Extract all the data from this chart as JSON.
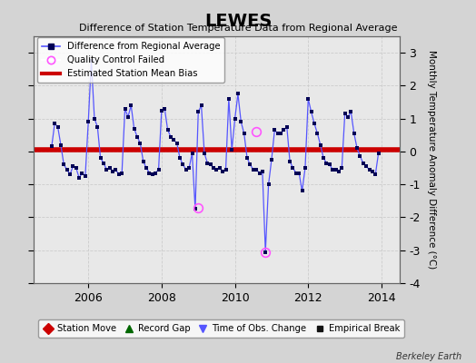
{
  "title": "LEWES",
  "subtitle": "Difference of Station Temperature Data from Regional Average",
  "ylabel": "Monthly Temperature Anomaly Difference (°C)",
  "credit": "Berkeley Earth",
  "xlim": [
    2004.5,
    2014.5
  ],
  "ylim": [
    -4,
    3.5
  ],
  "yticks": [
    -4,
    -3,
    -2,
    -1,
    0,
    1,
    2,
    3
  ],
  "xticks": [
    2006,
    2008,
    2010,
    2012,
    2014
  ],
  "bias": 0.05,
  "bg_color": "#d4d4d4",
  "plot_bg": "#e8e8e8",
  "line_color": "#5555ff",
  "dot_color": "#000055",
  "bias_color": "#cc0000",
  "qc_color": "#ff55ff",
  "data": [
    [
      2005.0,
      0.15
    ],
    [
      2005.083,
      0.85
    ],
    [
      2005.167,
      0.75
    ],
    [
      2005.25,
      0.2
    ],
    [
      2005.333,
      -0.4
    ],
    [
      2005.417,
      -0.55
    ],
    [
      2005.5,
      -0.7
    ],
    [
      2005.583,
      -0.45
    ],
    [
      2005.667,
      -0.5
    ],
    [
      2005.75,
      -0.8
    ],
    [
      2005.833,
      -0.65
    ],
    [
      2005.917,
      -0.75
    ],
    [
      2006.0,
      0.9
    ],
    [
      2006.083,
      2.75
    ],
    [
      2006.167,
      1.0
    ],
    [
      2006.25,
      0.75
    ],
    [
      2006.333,
      -0.2
    ],
    [
      2006.417,
      -0.35
    ],
    [
      2006.5,
      -0.55
    ],
    [
      2006.583,
      -0.5
    ],
    [
      2006.667,
      -0.6
    ],
    [
      2006.75,
      -0.55
    ],
    [
      2006.833,
      -0.7
    ],
    [
      2006.917,
      -0.65
    ],
    [
      2007.0,
      1.3
    ],
    [
      2007.083,
      1.05
    ],
    [
      2007.167,
      1.4
    ],
    [
      2007.25,
      0.7
    ],
    [
      2007.333,
      0.45
    ],
    [
      2007.417,
      0.25
    ],
    [
      2007.5,
      -0.3
    ],
    [
      2007.583,
      -0.5
    ],
    [
      2007.667,
      -0.65
    ],
    [
      2007.75,
      -0.7
    ],
    [
      2007.833,
      -0.65
    ],
    [
      2007.917,
      -0.55
    ],
    [
      2008.0,
      1.25
    ],
    [
      2008.083,
      1.3
    ],
    [
      2008.167,
      0.65
    ],
    [
      2008.25,
      0.45
    ],
    [
      2008.333,
      0.35
    ],
    [
      2008.417,
      0.25
    ],
    [
      2008.5,
      -0.2
    ],
    [
      2008.583,
      -0.4
    ],
    [
      2008.667,
      -0.55
    ],
    [
      2008.75,
      -0.5
    ],
    [
      2008.833,
      -0.05
    ],
    [
      2008.917,
      -1.75
    ],
    [
      2009.0,
      1.2
    ],
    [
      2009.083,
      1.4
    ],
    [
      2009.167,
      -0.05
    ],
    [
      2009.25,
      -0.35
    ],
    [
      2009.333,
      -0.4
    ],
    [
      2009.417,
      -0.5
    ],
    [
      2009.5,
      -0.55
    ],
    [
      2009.583,
      -0.5
    ],
    [
      2009.667,
      -0.6
    ],
    [
      2009.75,
      -0.55
    ],
    [
      2009.833,
      1.6
    ],
    [
      2009.917,
      0.05
    ],
    [
      2010.0,
      1.0
    ],
    [
      2010.083,
      1.75
    ],
    [
      2010.167,
      0.9
    ],
    [
      2010.25,
      0.55
    ],
    [
      2010.333,
      -0.2
    ],
    [
      2010.417,
      -0.4
    ],
    [
      2010.5,
      -0.55
    ],
    [
      2010.583,
      -0.55
    ],
    [
      2010.667,
      -0.65
    ],
    [
      2010.75,
      -0.6
    ],
    [
      2010.833,
      -3.05
    ],
    [
      2010.917,
      -1.0
    ],
    [
      2011.0,
      -0.25
    ],
    [
      2011.083,
      0.65
    ],
    [
      2011.167,
      0.55
    ],
    [
      2011.25,
      0.55
    ],
    [
      2011.333,
      0.65
    ],
    [
      2011.417,
      0.75
    ],
    [
      2011.5,
      -0.3
    ],
    [
      2011.583,
      -0.5
    ],
    [
      2011.667,
      -0.65
    ],
    [
      2011.75,
      -0.65
    ],
    [
      2011.833,
      -1.2
    ],
    [
      2011.917,
      -0.5
    ],
    [
      2012.0,
      1.6
    ],
    [
      2012.083,
      1.2
    ],
    [
      2012.167,
      0.85
    ],
    [
      2012.25,
      0.55
    ],
    [
      2012.333,
      0.2
    ],
    [
      2012.417,
      -0.2
    ],
    [
      2012.5,
      -0.35
    ],
    [
      2012.583,
      -0.4
    ],
    [
      2012.667,
      -0.55
    ],
    [
      2012.75,
      -0.55
    ],
    [
      2012.833,
      -0.6
    ],
    [
      2012.917,
      -0.5
    ],
    [
      2013.0,
      1.15
    ],
    [
      2013.083,
      1.05
    ],
    [
      2013.167,
      1.2
    ],
    [
      2013.25,
      0.55
    ],
    [
      2013.333,
      0.1
    ],
    [
      2013.417,
      -0.15
    ],
    [
      2013.5,
      -0.35
    ],
    [
      2013.583,
      -0.45
    ],
    [
      2013.667,
      -0.55
    ],
    [
      2013.75,
      -0.6
    ],
    [
      2013.833,
      -0.7
    ],
    [
      2013.917,
      -0.05
    ]
  ],
  "qc_points": [
    [
      2009.0,
      -1.72
    ],
    [
      2010.583,
      0.6
    ],
    [
      2010.833,
      -3.05
    ]
  ]
}
